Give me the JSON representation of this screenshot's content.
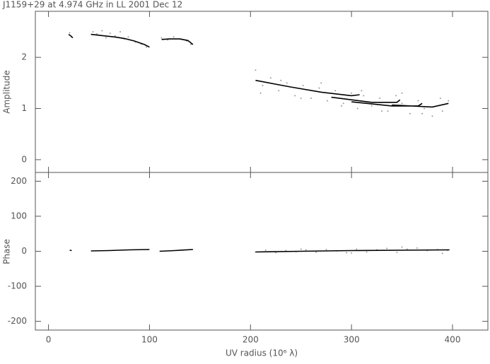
{
  "chart_data": [
    {
      "type": "scatter",
      "title": "J1159+29 at 4.974 GHz in LL  2001 Dec 12",
      "ylabel": "Amplitude",
      "xlim": [
        -13,
        435
      ],
      "ylim": [
        -0.25,
        2.9
      ],
      "yticks": [
        0,
        1,
        2
      ],
      "series": [
        {
          "color": "#9a9a9a",
          "style": "points",
          "x": [
            21,
            23,
            44,
            48,
            53,
            57,
            61,
            66,
            71,
            75,
            79,
            86,
            92,
            97,
            112,
            118,
            124,
            131,
            137,
            141,
            205,
            212,
            220,
            228,
            236,
            244,
            252,
            260,
            268,
            276,
            284,
            292,
            300,
            306,
            312,
            320,
            328,
            336,
            344,
            350,
            358,
            366,
            372,
            380,
            388,
            396,
            210,
            230,
            250,
            270,
            290,
            310,
            330,
            350,
            370,
            390
          ],
          "values": [
            2.48,
            2.4,
            2.5,
            2.46,
            2.52,
            2.38,
            2.47,
            2.42,
            2.5,
            2.36,
            2.4,
            2.3,
            2.26,
            2.2,
            2.38,
            2.34,
            2.4,
            2.36,
            2.32,
            2.25,
            1.75,
            1.45,
            1.6,
            1.35,
            1.5,
            1.25,
            1.45,
            1.2,
            1.4,
            1.15,
            1.35,
            1.1,
            1.3,
            1.0,
            1.25,
            1.05,
            1.2,
            0.95,
            1.25,
            1.1,
            0.9,
            1.15,
            1.0,
            0.85,
            1.2,
            1.15,
            1.3,
            1.55,
            1.2,
            1.5,
            1.05,
            1.35,
            0.95,
            1.3,
            0.9,
            0.95
          ]
        },
        {
          "color": "#000000",
          "style": "line",
          "x": [
            20,
            22,
            24,
            null,
            42,
            55,
            65,
            75,
            85,
            95,
            100,
            null,
            112,
            120,
            130,
            138,
            143,
            null,
            205,
            240,
            270,
            300,
            308,
            null,
            280,
            320,
            345,
            348,
            null,
            300,
            340,
            366,
            370,
            null,
            340,
            380,
            396
          ],
          "values": [
            2.45,
            2.42,
            2.38,
            null,
            2.45,
            2.42,
            2.4,
            2.37,
            2.32,
            2.25,
            2.2,
            null,
            2.35,
            2.36,
            2.36,
            2.33,
            2.25,
            null,
            1.55,
            1.42,
            1.32,
            1.25,
            1.27,
            null,
            1.22,
            1.12,
            1.12,
            1.17,
            null,
            1.13,
            1.05,
            1.05,
            1.1,
            null,
            1.07,
            1.03,
            1.1
          ]
        }
      ]
    },
    {
      "type": "scatter",
      "ylabel": "Phase",
      "xlabel": "UV radius  (10⁶ λ)",
      "xlim": [
        -13,
        435
      ],
      "xticks": [
        0,
        100,
        200,
        300,
        400
      ],
      "ylim": [
        -225,
        225
      ],
      "yticks": [
        -200,
        -100,
        0,
        100,
        200
      ],
      "series": [
        {
          "color": "#9a9a9a",
          "style": "points",
          "x": [
            205,
            215,
            225,
            235,
            245,
            255,
            265,
            275,
            285,
            295,
            305,
            315,
            325,
            335,
            345,
            355,
            365,
            375,
            385,
            395,
            250,
            300,
            350,
            390
          ],
          "values": [
            -2,
            3,
            -4,
            2,
            -1,
            4,
            -3,
            5,
            1,
            -4,
            6,
            -2,
            4,
            8,
            -3,
            6,
            9,
            2,
            5,
            3,
            6,
            -5,
            12,
            -6
          ]
        },
        {
          "color": "#000000",
          "style": "line",
          "x": [
            21,
            23,
            null,
            42,
            60,
            80,
            100,
            null,
            110,
            125,
            143,
            null,
            205,
            250,
            300,
            350,
            397
          ],
          "values": [
            3,
            2,
            null,
            1,
            2,
            4,
            5,
            null,
            0,
            2,
            5,
            null,
            -2,
            0,
            2,
            3,
            4
          ]
        }
      ]
    }
  ]
}
